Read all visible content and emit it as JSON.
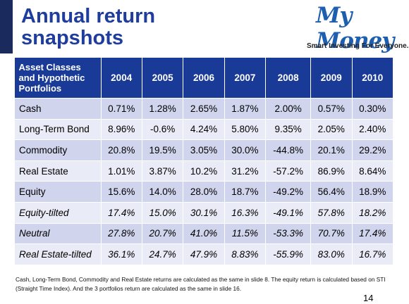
{
  "header": {
    "title": "Annual return snapshots",
    "logo": "My Money",
    "tagline": "Smart Investing For Everyone."
  },
  "table": {
    "columns": [
      "Asset Classes and Hypothetic Portfolios",
      "2004",
      "2005",
      "2006",
      "2007",
      "2008",
      "2009",
      "2010"
    ],
    "rows": [
      [
        "Cash",
        "0.71%",
        "1.28%",
        "2.65%",
        "1.87%",
        "2.00%",
        "0.57%",
        "0.30%"
      ],
      [
        "Long-Term Bond",
        "8.96%",
        "-0.6%",
        "4.24%",
        "5.80%",
        "9.35%",
        "2.05%",
        "2.40%"
      ],
      [
        "Commodity",
        "20.8%",
        "19.5%",
        "3.05%",
        "30.0%",
        "-44.8%",
        "20.1%",
        "29.2%"
      ],
      [
        "Real Estate",
        "1.01%",
        "3.87%",
        "10.2%",
        "31.2%",
        "-57.2%",
        "86.9%",
        "8.64%"
      ],
      [
        "Equity",
        "15.6%",
        "14.0%",
        "28.0%",
        "18.7%",
        "-49.2%",
        "56.4%",
        "18.9%"
      ],
      [
        "Equity-tilted",
        "17.4%",
        "15.0%",
        "30.1%",
        "16.3%",
        "-49.1%",
        "57.8%",
        "18.2%"
      ],
      [
        "Neutral",
        "27.8%",
        "20.7%",
        "41.0%",
        "11.5%",
        "-53.3%",
        "70.7%",
        "17.4%"
      ],
      [
        "Real Estate-tilted",
        "36.1%",
        "24.7%",
        "47.9%",
        "8.83%",
        "-55.9%",
        "83.0%",
        "16.7%"
      ]
    ]
  },
  "footnote": "Cash, Long-Term Bond, Commodity and Real Estate returns are calculated as the same in slide 8. The equity return is calculated based on STI (Straight Time Index). And the 3 portfolios return are calculated as the same in slide 16.",
  "page_number": "14"
}
